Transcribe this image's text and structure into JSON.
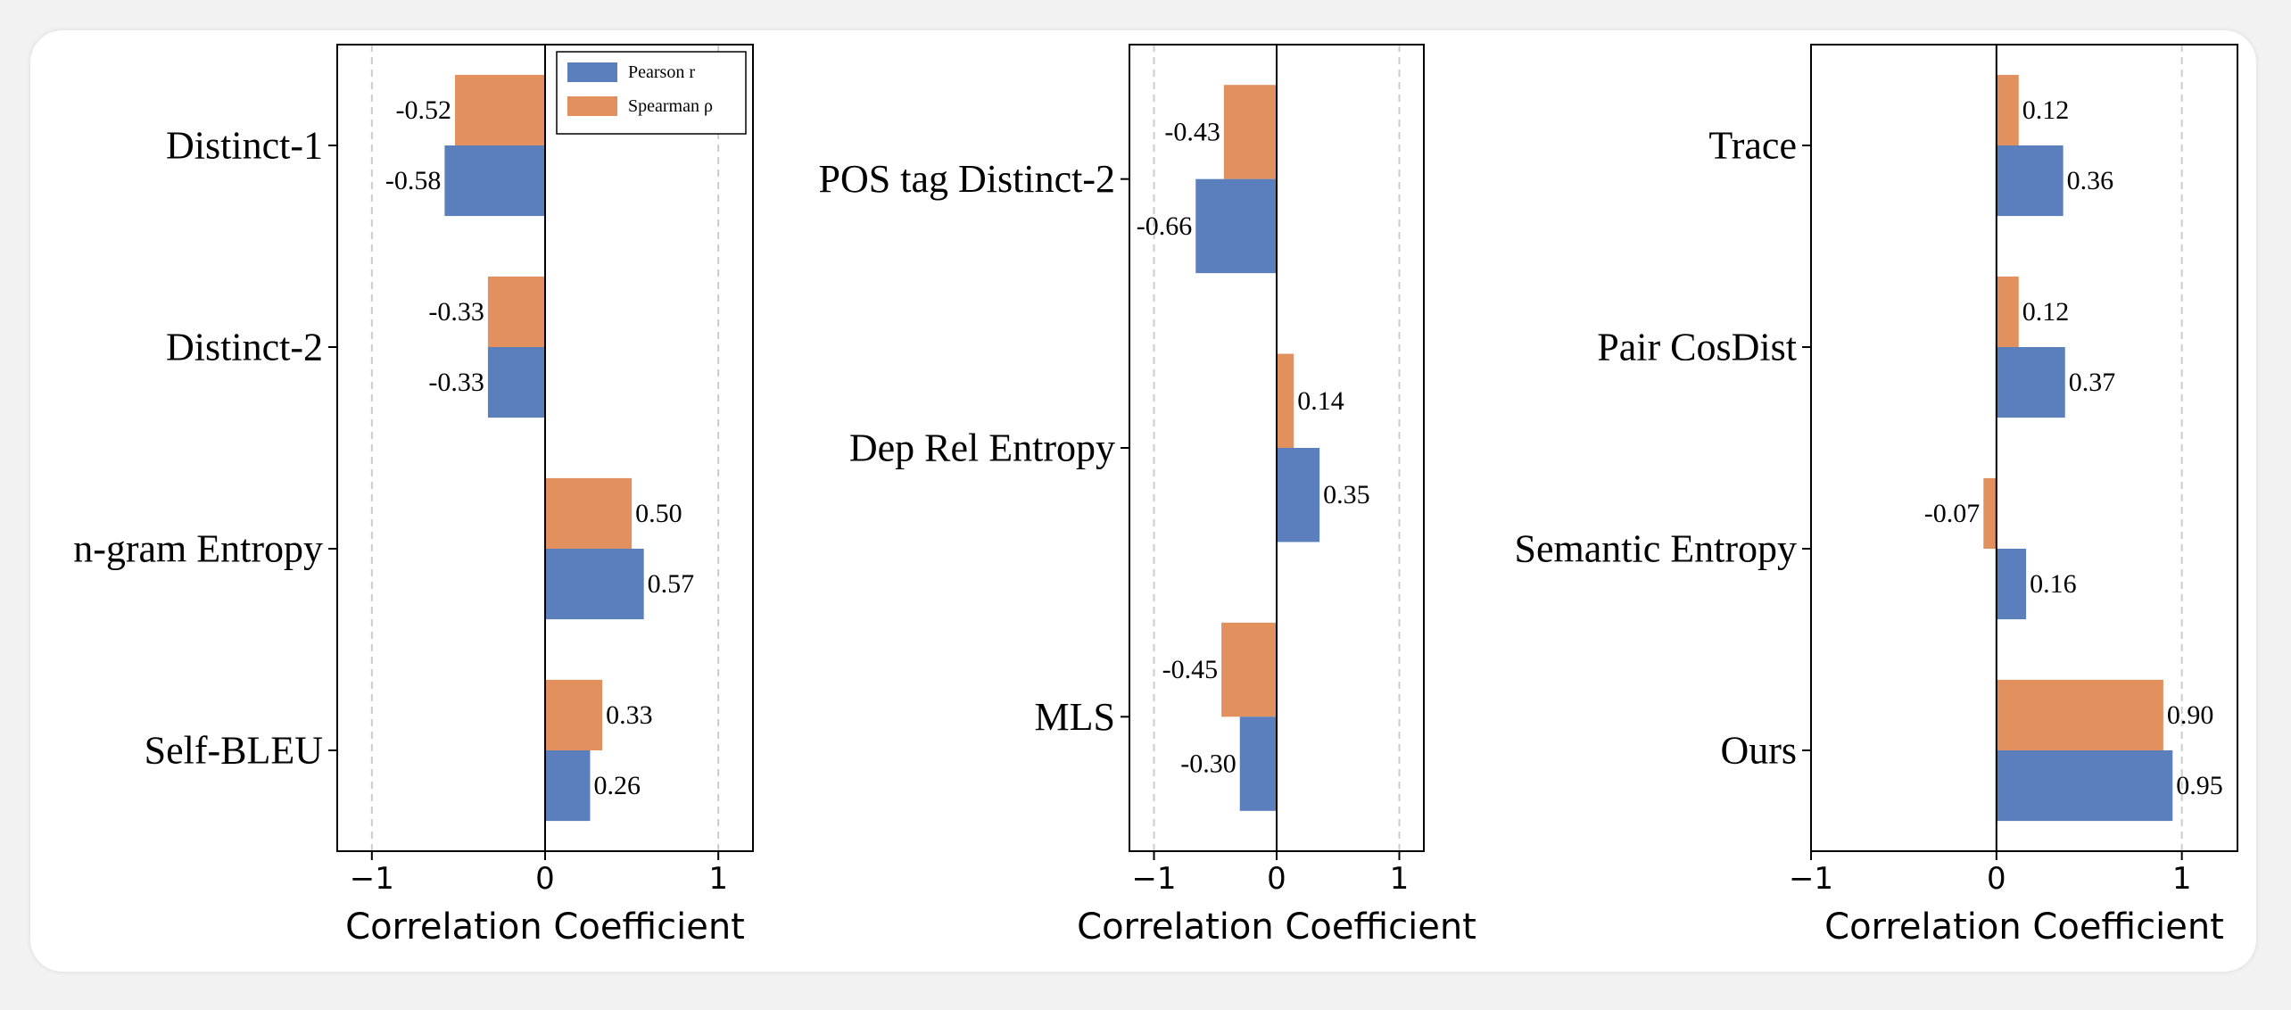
{
  "colors": {
    "pearson": "#5b7fbd",
    "spearman": "#e1905e",
    "grid": "#cccccc",
    "axis": "#000000"
  },
  "chart_data": [
    {
      "type": "bar",
      "orientation": "horizontal",
      "xlabel": "Correlation Coefficient",
      "xlim": [
        -1.2,
        1.2
      ],
      "xticks": [
        -1,
        0,
        1
      ],
      "xtick_labels": [
        "−1",
        "0",
        "1"
      ],
      "grid": "vertical dashed at -1 and 1",
      "legend": {
        "placement": "top-right",
        "entries": [
          "Pearson r",
          "Spearman ρ"
        ]
      },
      "categories": [
        "Distinct-1",
        "Distinct-2",
        "n-gram Entropy",
        "Self-BLEU"
      ],
      "series": [
        {
          "name": "Pearson r",
          "values": [
            -0.58,
            -0.33,
            0.57,
            0.26
          ],
          "labels": [
            "-0.58",
            "-0.33",
            "0.57",
            "0.26"
          ]
        },
        {
          "name": "Spearman ρ",
          "values": [
            -0.52,
            -0.33,
            0.5,
            0.33
          ],
          "labels": [
            "-0.52",
            "-0.33",
            "0.50",
            "0.33"
          ]
        }
      ]
    },
    {
      "type": "bar",
      "orientation": "horizontal",
      "xlabel": "Correlation Coefficient",
      "xlim": [
        -1.2,
        1.2
      ],
      "xticks": [
        -1,
        0,
        1
      ],
      "xtick_labels": [
        "−1",
        "0",
        "1"
      ],
      "grid": "vertical dashed at -1 and 1",
      "categories": [
        "POS tag Distinct-2",
        "Dep Rel Entropy",
        "MLS"
      ],
      "series": [
        {
          "name": "Pearson r",
          "values": [
            -0.66,
            0.35,
            -0.3
          ],
          "labels": [
            "-0.66",
            "0.35",
            "-0.30"
          ]
        },
        {
          "name": "Spearman ρ",
          "values": [
            -0.43,
            0.14,
            -0.45
          ],
          "labels": [
            "-0.43",
            "0.14",
            "-0.45"
          ]
        }
      ]
    },
    {
      "type": "bar",
      "orientation": "horizontal",
      "xlabel": "Correlation Coefficient",
      "xlim": [
        -1.0,
        1.3
      ],
      "xticks": [
        -1,
        0,
        1
      ],
      "xtick_labels": [
        "−1",
        "0",
        "1"
      ],
      "grid": "vertical dashed at -1 and 1",
      "categories": [
        "Trace",
        "Pair CosDist",
        "Semantic Entropy",
        "Ours"
      ],
      "series": [
        {
          "name": "Pearson r",
          "values": [
            0.36,
            0.37,
            0.16,
            0.95
          ],
          "labels": [
            "0.36",
            "0.37",
            "0.16",
            "0.95"
          ]
        },
        {
          "name": "Spearman ρ",
          "values": [
            0.12,
            0.12,
            -0.07,
            0.9
          ],
          "labels": [
            "0.12",
            "0.12",
            "-0.07",
            "0.90"
          ]
        }
      ]
    }
  ]
}
